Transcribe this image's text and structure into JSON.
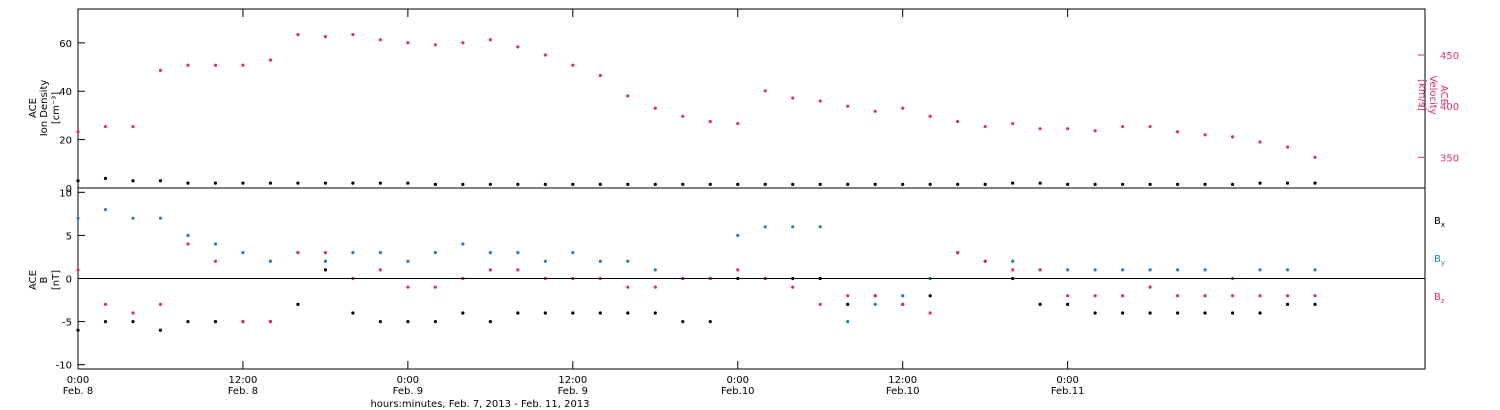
{
  "chart_data": [
    {
      "type": "scatter",
      "panel": "top",
      "ylabel_left": [
        "ACE",
        "Ion Density",
        "[cm⁻³]"
      ],
      "ylabel_right": [
        "ACE",
        "Velocity",
        "[km/s]"
      ],
      "ylim_left": [
        0,
        74
      ],
      "yticks_left": [
        0,
        20,
        40,
        60
      ],
      "ylim_right": [
        320,
        495
      ],
      "yticks_right": [
        350,
        400,
        450
      ],
      "series": [
        {
          "name": "",
          "axis": "left",
          "color": "#000000",
          "x": [
            0,
            2,
            4,
            6,
            8,
            10,
            12,
            14,
            16,
            18,
            20,
            22,
            24,
            26,
            28,
            30,
            32,
            34,
            36,
            38,
            40,
            42,
            44,
            46,
            48,
            50,
            52,
            54,
            56,
            58,
            60,
            62,
            64,
            66,
            68,
            70,
            72,
            74,
            76,
            78,
            80,
            82,
            84,
            86,
            88,
            90
          ],
          "y": [
            3,
            4,
            3,
            3,
            2,
            2,
            2,
            2,
            2,
            2,
            2,
            2,
            2,
            1.5,
            1.5,
            1.5,
            1.5,
            1.5,
            1.5,
            1.5,
            1.5,
            1.5,
            1.5,
            1.5,
            1.5,
            1.5,
            1.5,
            1.5,
            1.5,
            1.5,
            1.5,
            1.5,
            1.5,
            1.5,
            2,
            2,
            1.5,
            1.5,
            1.5,
            1.5,
            1.5,
            1.5,
            1.5,
            2,
            2,
            2
          ]
        },
        {
          "name": "",
          "axis": "right",
          "color": "#e0306a",
          "x": [
            0,
            2,
            4,
            6,
            8,
            10,
            12,
            14,
            16,
            18,
            20,
            22,
            24,
            26,
            28,
            30,
            32,
            34,
            36,
            38,
            40,
            42,
            44,
            46,
            48,
            50,
            52,
            54,
            56,
            58,
            60,
            62,
            64,
            66,
            68,
            70,
            72,
            74,
            76,
            78,
            80,
            82,
            84,
            86,
            88,
            90
          ],
          "y": [
            375,
            380,
            380,
            435,
            440,
            440,
            440,
            445,
            470,
            468,
            470,
            465,
            462,
            460,
            462,
            465,
            458,
            450,
            440,
            430,
            410,
            398,
            390,
            385,
            383,
            415,
            408,
            405,
            400,
            395,
            398,
            390,
            385,
            380,
            383,
            378,
            378,
            376,
            380,
            380,
            375,
            372,
            370,
            365,
            360,
            350
          ]
        }
      ]
    },
    {
      "type": "scatter",
      "panel": "bottom",
      "ylabel_left": [
        "ACE",
        "B",
        "[nT]"
      ],
      "ylim": [
        -10.5,
        10.5
      ],
      "yticks": [
        -10,
        -5,
        0,
        5,
        10
      ],
      "xlabel": "hours:minutes, Feb.  7, 2013 - Feb. 11, 2013",
      "xlim": [
        0,
        98
      ],
      "xticks": [
        {
          "x": 0,
          "top": "0:00",
          "bottom": "Feb. 8"
        },
        {
          "x": 12,
          "top": "12:00",
          "bottom": "Feb. 8"
        },
        {
          "x": 24,
          "top": "0:00",
          "bottom": "Feb. 9"
        },
        {
          "x": 36,
          "top": "12:00",
          "bottom": "Feb. 9"
        },
        {
          "x": 48,
          "top": "0:00",
          "bottom": "Feb.10"
        },
        {
          "x": 60,
          "top": "12:00",
          "bottom": "Feb.10"
        },
        {
          "x": 72,
          "top": "0:00",
          "bottom": "Feb.11"
        }
      ],
      "legend": [
        {
          "label": "Bx",
          "main": "B",
          "sub": "x",
          "color": "#000000"
        },
        {
          "label": "By",
          "main": "B",
          "sub": "y",
          "color": "#1a7fd6"
        },
        {
          "label": "Bz",
          "main": "B",
          "sub": "z",
          "color": "#e0306a"
        }
      ],
      "series": [
        {
          "name": "Bx",
          "color": "#000000",
          "x": [
            0,
            2,
            4,
            6,
            8,
            10,
            12,
            14,
            16,
            18,
            20,
            22,
            24,
            26,
            28,
            30,
            32,
            34,
            36,
            38,
            40,
            42,
            44,
            46,
            48,
            50,
            52,
            54,
            56,
            58,
            60,
            62,
            64,
            66,
            68,
            70,
            72,
            74,
            76,
            78,
            80,
            82,
            84,
            86,
            88,
            90
          ],
          "y": [
            -6,
            -5,
            -5,
            -6,
            -5,
            -5,
            -5,
            -5,
            -3,
            1,
            -4,
            -5,
            -5,
            -5,
            -4,
            -5,
            -4,
            -4,
            -4,
            -4,
            -4,
            -4,
            -5,
            -5,
            0,
            0,
            0,
            0,
            -3,
            -2,
            -3,
            -2,
            3,
            2,
            0,
            -3,
            -3,
            -4,
            -4,
            -4,
            -4,
            -4,
            -4,
            -4,
            -3,
            -3
          ]
        },
        {
          "name": "By",
          "color": "#1a7fd6",
          "x": [
            0,
            2,
            4,
            6,
            8,
            10,
            12,
            14,
            16,
            18,
            20,
            22,
            24,
            26,
            28,
            30,
            32,
            34,
            36,
            38,
            40,
            42,
            44,
            46,
            48,
            50,
            52,
            54,
            56,
            58,
            60,
            62,
            64,
            66,
            68,
            70,
            72,
            74,
            76,
            78,
            80,
            82,
            84,
            86,
            88,
            90
          ],
          "y": [
            7,
            8,
            7,
            7,
            5,
            4,
            3,
            2,
            3,
            2,
            3,
            3,
            2,
            3,
            4,
            3,
            3,
            2,
            3,
            2,
            2,
            1,
            0,
            0,
            5,
            6,
            6,
            6,
            -5,
            -3,
            -2,
            0,
            3,
            2,
            2,
            1,
            1,
            1,
            1,
            1,
            1,
            1,
            0,
            1,
            1,
            1
          ]
        },
        {
          "name": "Bz",
          "color": "#e0306a",
          "x": [
            0,
            2,
            4,
            6,
            8,
            10,
            12,
            14,
            16,
            18,
            20,
            22,
            24,
            26,
            28,
            30,
            32,
            34,
            36,
            38,
            40,
            42,
            44,
            46,
            48,
            50,
            52,
            54,
            56,
            58,
            60,
            62,
            64,
            66,
            68,
            70,
            72,
            74,
            76,
            78,
            80,
            82,
            84,
            86,
            88,
            90
          ],
          "y": [
            1,
            -3,
            -4,
            -3,
            4,
            2,
            -5,
            -5,
            3,
            3,
            0,
            1,
            -1,
            -1,
            0,
            1,
            1,
            0,
            0,
            0,
            -1,
            -1,
            0,
            0,
            1,
            0,
            -1,
            -3,
            -2,
            -2,
            -3,
            -4,
            3,
            2,
            1,
            1,
            -2,
            -2,
            -2,
            -1,
            -2,
            -2,
            -2,
            -2,
            -2,
            -2
          ]
        }
      ]
    }
  ]
}
